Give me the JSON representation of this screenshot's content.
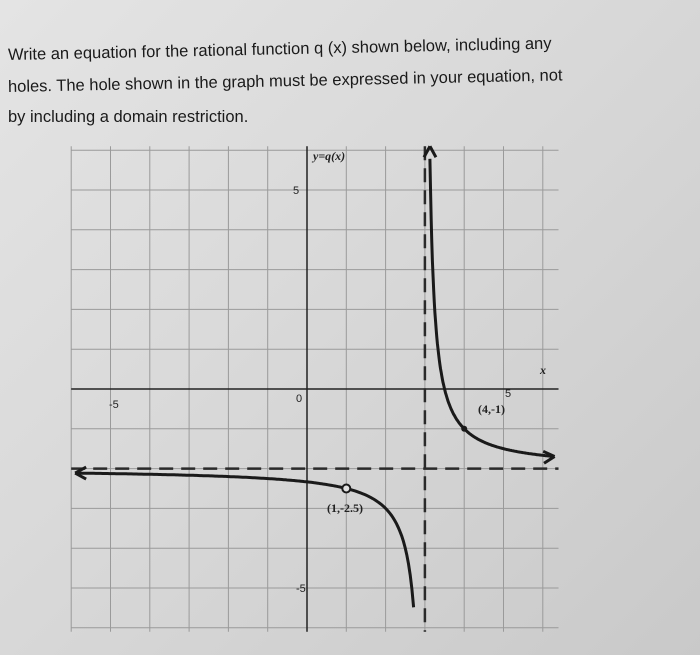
{
  "question": {
    "line1": "Write an equation for the rational function q (x) shown below, including any",
    "line2": "holes. The hole shown in the graph must be expressed in your equation, not",
    "line3": "by including a domain restriction."
  },
  "chart_data": {
    "type": "line",
    "title": "",
    "ylabel": "y=q(x)",
    "xlabel": "x",
    "xlim": [
      -6,
      6.4
    ],
    "ylim": [
      -6.1,
      6.1
    ],
    "grid": true,
    "x_ticks": [
      {
        "value": -5,
        "label": "-5"
      },
      {
        "value": 0,
        "label": "0"
      },
      {
        "value": 5,
        "label": "5"
      }
    ],
    "y_ticks": [
      {
        "value": 5,
        "label": "5"
      },
      {
        "value": -5,
        "label": "-5"
      }
    ],
    "vertical_asymptote": 3,
    "horizontal_asymptote": -2,
    "function": "q(x) = -2 + 1/(x-3)",
    "labeled_points": [
      {
        "x": 4,
        "y": -1,
        "label": "(4,-1)",
        "type": "point"
      },
      {
        "x": 1,
        "y": -2.5,
        "label": "(1,-2.5)",
        "type": "hole"
      }
    ],
    "colors": {
      "curve": "#1a1a1a",
      "grid": "#9a9a9a",
      "asymptote": "#2a2a2a"
    }
  }
}
